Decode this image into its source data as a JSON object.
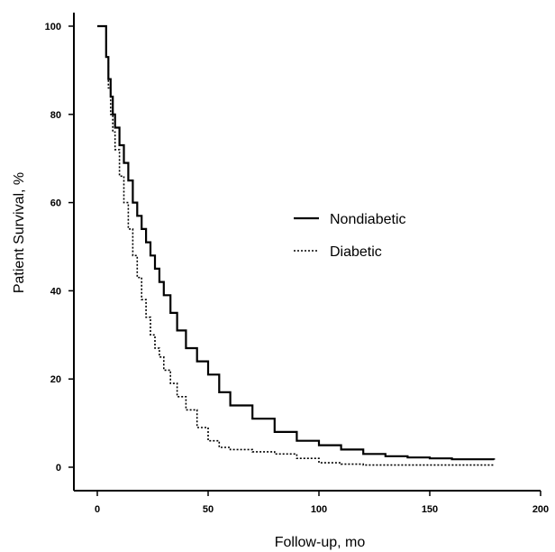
{
  "chart_data": {
    "type": "line",
    "title": "",
    "xlabel": "Follow-up, mo",
    "ylabel": "Patient Survival, %",
    "xlim": [
      -10,
      200
    ],
    "ylim": [
      -5,
      103
    ],
    "x_ticks": [
      0,
      50,
      100,
      150,
      200
    ],
    "y_ticks": [
      0,
      20,
      40,
      60,
      80,
      100
    ],
    "grid": false,
    "legend_position": "center-right",
    "series": [
      {
        "name": "Nondiabetic",
        "style": "solid",
        "color": "#000000",
        "step": true,
        "x": [
          0,
          4,
          5,
          6,
          7,
          8,
          10,
          12,
          14,
          16,
          18,
          20,
          22,
          24,
          26,
          28,
          30,
          33,
          36,
          40,
          45,
          50,
          55,
          60,
          70,
          80,
          90,
          100,
          110,
          120,
          130,
          140,
          150,
          160,
          179
        ],
        "y": [
          100,
          93,
          88,
          84,
          80,
          77,
          73,
          69,
          65,
          60,
          57,
          54,
          51,
          48,
          45,
          42,
          39,
          35,
          31,
          27,
          24,
          21,
          17,
          14,
          11,
          8,
          6,
          5,
          4,
          3,
          2.5,
          2.2,
          2,
          1.8,
          1.7
        ]
      },
      {
        "name": "Diabetic",
        "style": "dotted",
        "color": "#000000",
        "step": true,
        "x": [
          0,
          4,
          5,
          6,
          7,
          8,
          10,
          12,
          14,
          16,
          18,
          20,
          22,
          24,
          26,
          28,
          30,
          33,
          36,
          40,
          45,
          50,
          55,
          60,
          70,
          80,
          90,
          100,
          110,
          120,
          179
        ],
        "y": [
          100,
          93,
          86,
          80,
          76,
          72,
          66,
          60,
          54,
          48,
          43,
          38,
          34,
          30,
          27,
          25,
          22,
          19,
          16,
          13,
          9,
          6,
          4.5,
          4,
          3.5,
          3,
          2,
          1,
          0.7,
          0.5,
          0.5
        ]
      }
    ]
  }
}
